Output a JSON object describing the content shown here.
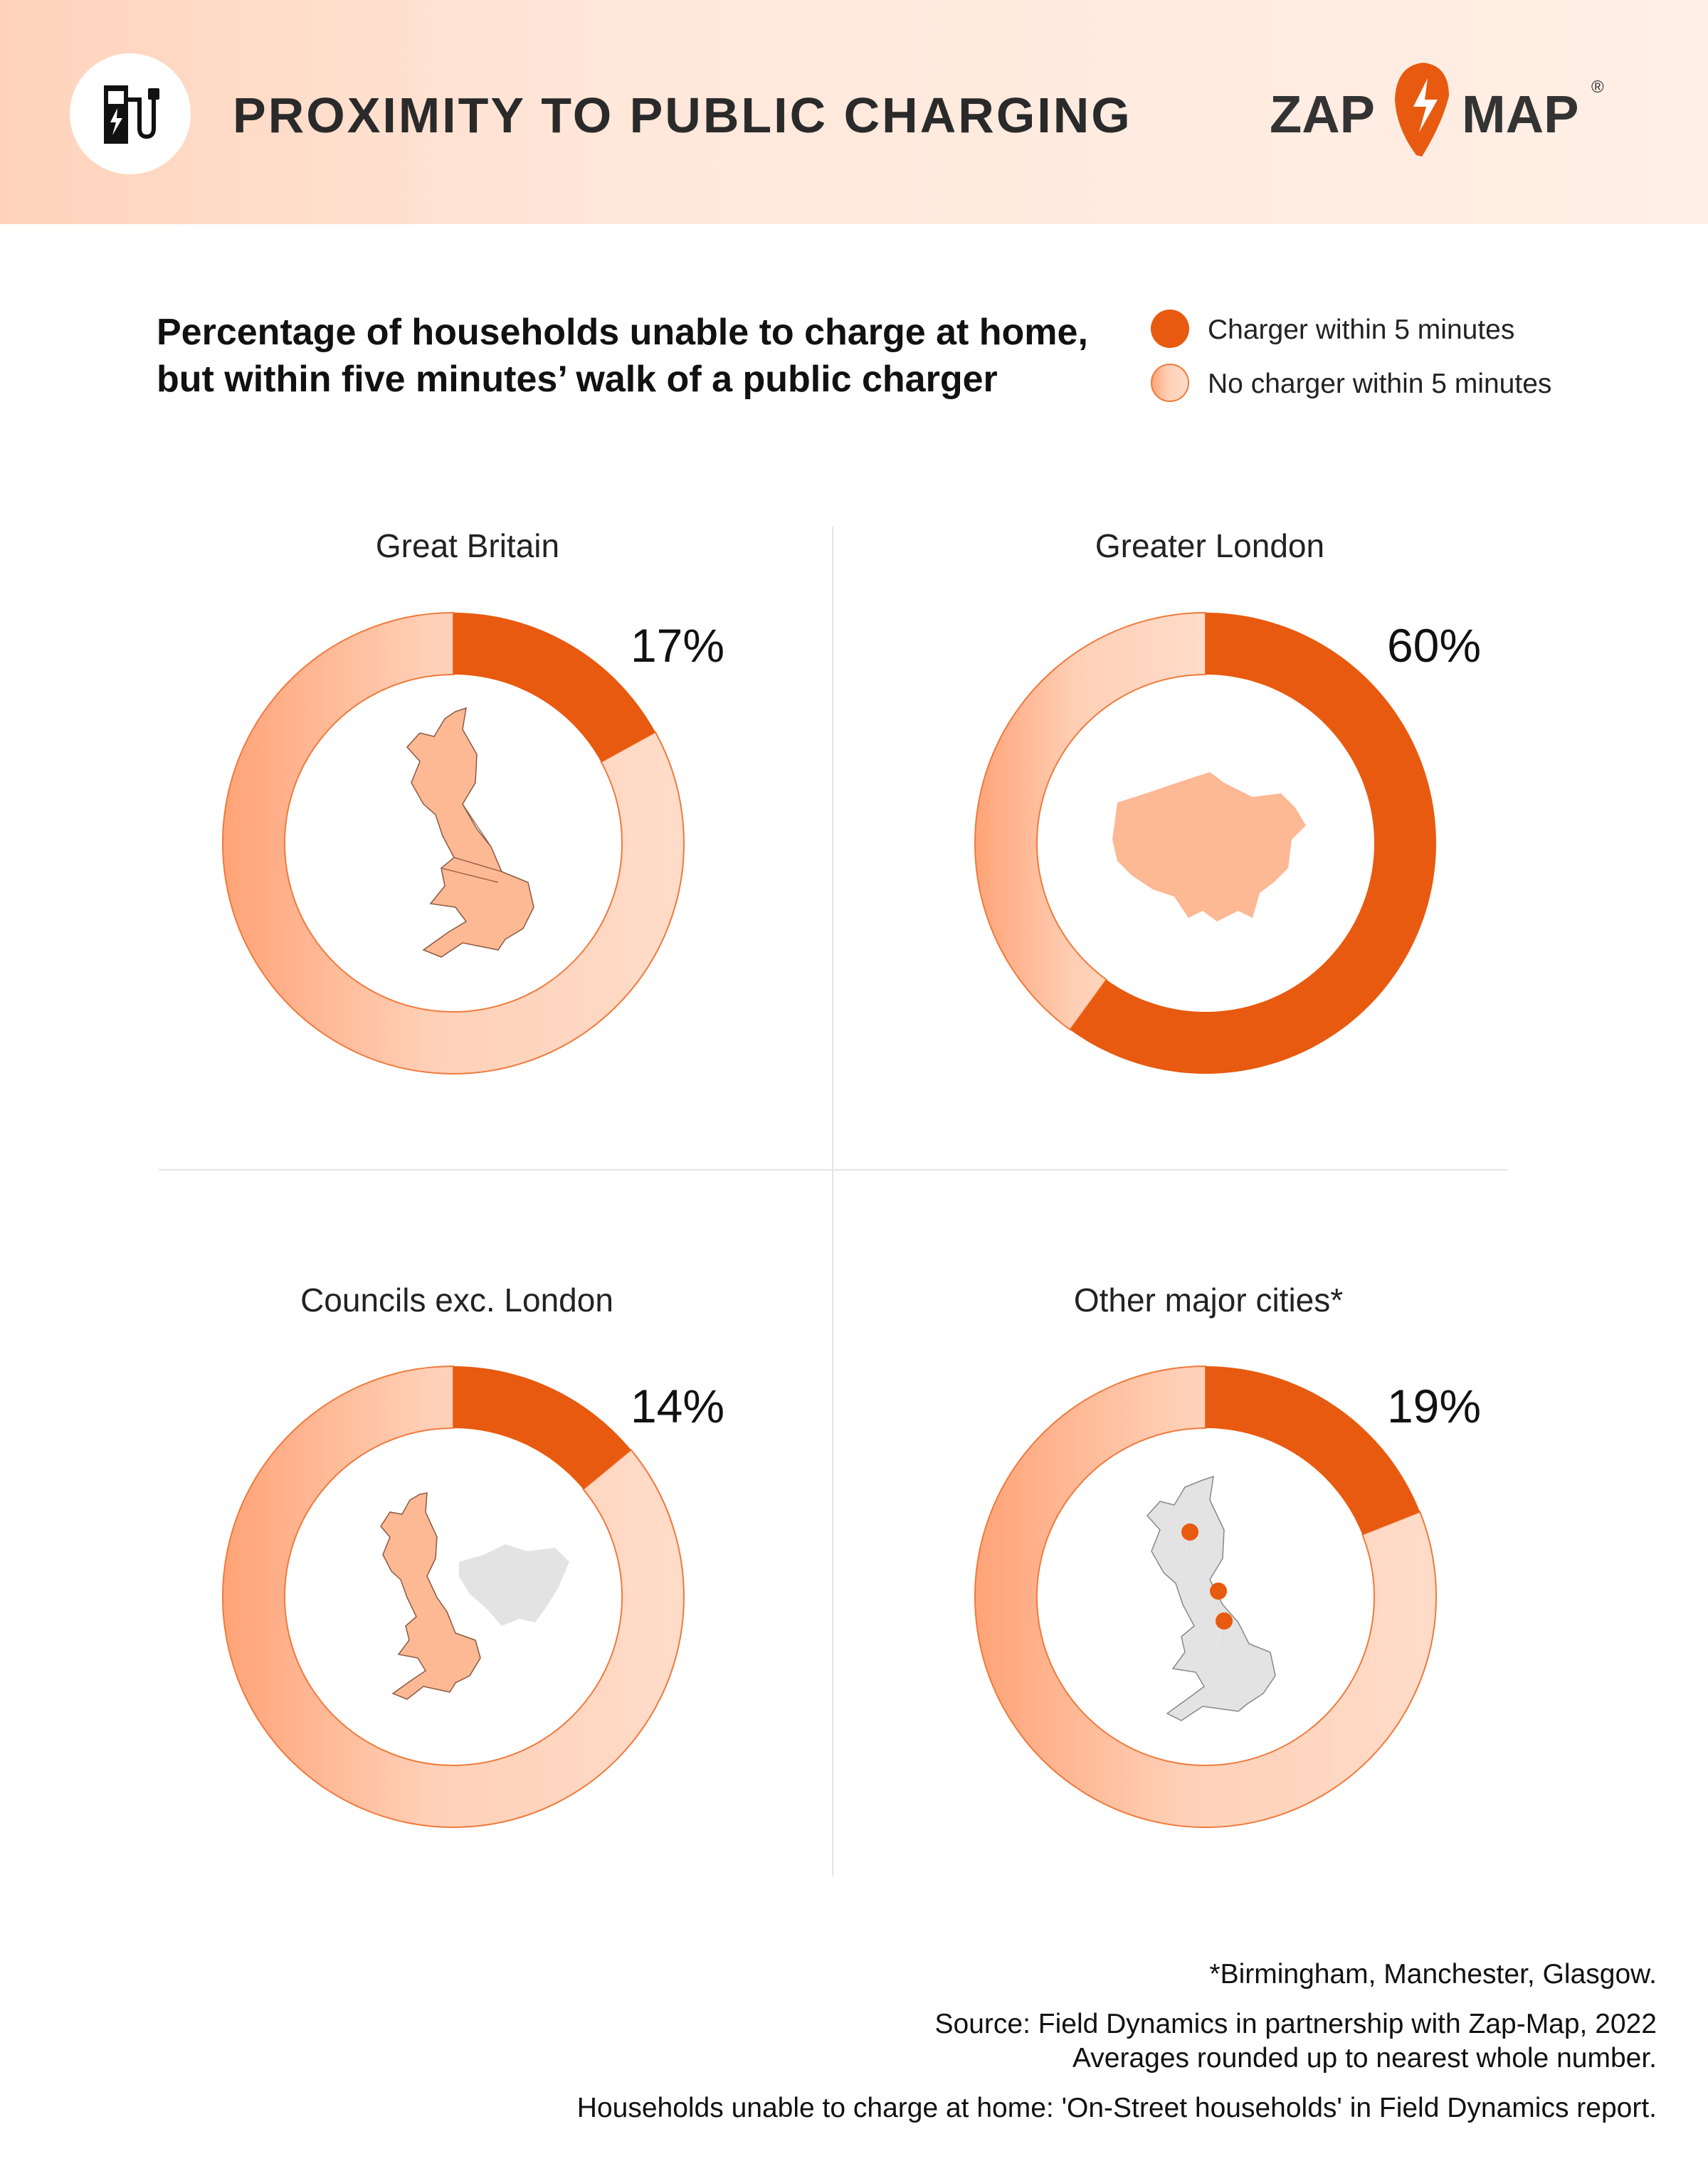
{
  "header": {
    "title": "PROXIMITY TO PUBLIC CHARGING",
    "icon": "ev-charger-icon",
    "logo_text_left": "ZAP",
    "logo_text_right": "MAP",
    "logo_mark": "®"
  },
  "subtitle_line1": "Percentage of households unable to charge at home,",
  "subtitle_line2": "but within five minutes’ walk of a public charger",
  "legend": [
    {
      "label": "Charger within 5 minutes",
      "color": "#E85A0F"
    },
    {
      "label": "No charger within 5 minutes",
      "color": "#FFD5BF"
    }
  ],
  "colors": {
    "accent": "#E85A0F",
    "light": "#FFD5BF",
    "light_dark": "#FFA77A",
    "header_bg": "#FFE9DD",
    "map": "#FDB894",
    "map_grey": "#E3E3E3"
  },
  "chart_data": [
    {
      "type": "pie",
      "title": "Great Britain",
      "label": "17%",
      "values": [
        17,
        83
      ],
      "categories": [
        "Charger within 5 minutes",
        "No charger within 5 minutes"
      ],
      "map": "great-britain"
    },
    {
      "type": "pie",
      "title": "Greater London",
      "label": "60%",
      "values": [
        60,
        40
      ],
      "categories": [
        "Charger within 5 minutes",
        "No charger within 5 minutes"
      ],
      "map": "greater-london"
    },
    {
      "type": "pie",
      "title": "Councils exc. London",
      "label": "14%",
      "values": [
        14,
        86
      ],
      "categories": [
        "Charger within 5 minutes",
        "No charger within 5 minutes"
      ],
      "map": "britain-excluding-london"
    },
    {
      "type": "pie",
      "title": "Other major cities*",
      "label": "19%",
      "values": [
        19,
        81
      ],
      "categories": [
        "Charger within 5 minutes",
        "No charger within 5 minutes"
      ],
      "map": "britain-with-city-pins"
    }
  ],
  "footnotes": {
    "cities": "*Birmingham, Manchester, Glasgow.",
    "source": "Source: Field Dynamics in partnership with Zap-Map, 2022",
    "rounding": "Averages rounded up to nearest whole number.",
    "definition": "Households unable to charge at home: 'On-Street households' in Field Dynamics report."
  }
}
